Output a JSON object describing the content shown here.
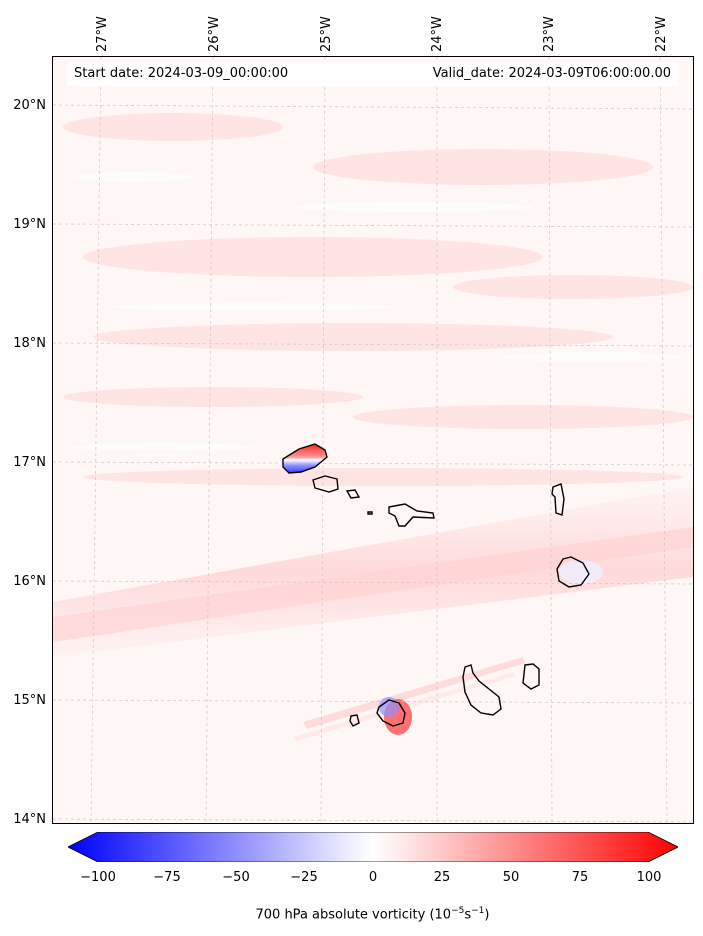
{
  "header": {
    "start_date": "Start date: 2024-03-09_00:00:00",
    "valid_date": "Valid_date: 2024-03-09T06:00:00.00"
  },
  "map": {
    "lon_labels": [
      "27°W",
      "26°W",
      "25°W",
      "24°W",
      "23°W",
      "22°W"
    ],
    "lat_labels": [
      "20°N",
      "19°N",
      "18°N",
      "17°N",
      "16°N",
      "15°N",
      "14°N"
    ],
    "gridlines": true,
    "background_color": "#fff5f5",
    "islands": [
      "Santo Antão",
      "São Vicente",
      "Santa Luzia",
      "São Nicolau",
      "Sal",
      "Boa Vista",
      "Brava",
      "Fogo",
      "Santiago",
      "Maio"
    ]
  },
  "colorbar": {
    "ticks": [
      "−100",
      "−75",
      "−50",
      "−25",
      "0",
      "25",
      "50",
      "75",
      "100"
    ],
    "label": "700 hPa absolute vorticity (10",
    "label_exp": "−5",
    "label_mid": "s",
    "label_exp2": "−1",
    "label_end": ")",
    "color_min": "#0000ff",
    "color_mid": "#ffffff",
    "color_max": "#ff0000"
  }
}
